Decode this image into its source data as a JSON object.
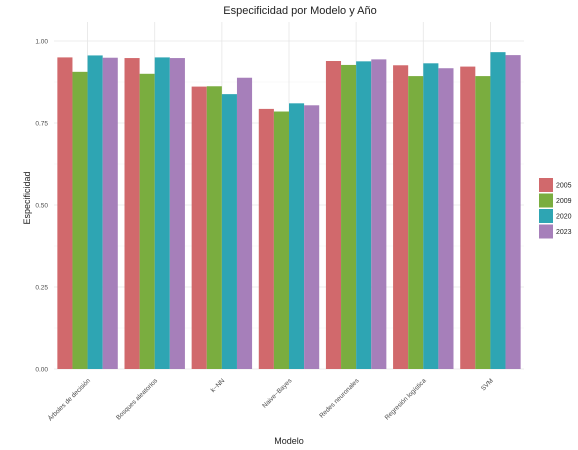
{
  "chart_data": {
    "type": "bar",
    "title": "Especificidad por Modelo y Año",
    "xlabel": "Modelo",
    "ylabel": "Especificidad",
    "ylim": [
      0,
      1
    ],
    "yticks": [
      "0.00",
      "0.25",
      "0.50",
      "0.75",
      "1.00"
    ],
    "grid": true,
    "legend_position": "right",
    "categories": [
      "Árboles de decisión",
      "Bosques aleatorios",
      "k−NN",
      "Naive−Bayes",
      "Redes neuronales",
      "Regresión logística",
      "SVM"
    ],
    "series": [
      {
        "name": "2005",
        "color": "#d1696c",
        "values": [
          0.95,
          0.948,
          0.861,
          0.793,
          0.939,
          0.926,
          0.922
        ]
      },
      {
        "name": "2009",
        "color": "#7aad3f",
        "values": [
          0.906,
          0.9,
          0.862,
          0.785,
          0.927,
          0.893,
          0.893
        ]
      },
      {
        "name": "2020",
        "color": "#2ea5b3",
        "values": [
          0.956,
          0.95,
          0.838,
          0.81,
          0.938,
          0.932,
          0.966
        ]
      },
      {
        "name": "2023",
        "color": "#a67fba",
        "values": [
          0.949,
          0.948,
          0.888,
          0.804,
          0.944,
          0.917,
          0.957
        ]
      }
    ]
  }
}
